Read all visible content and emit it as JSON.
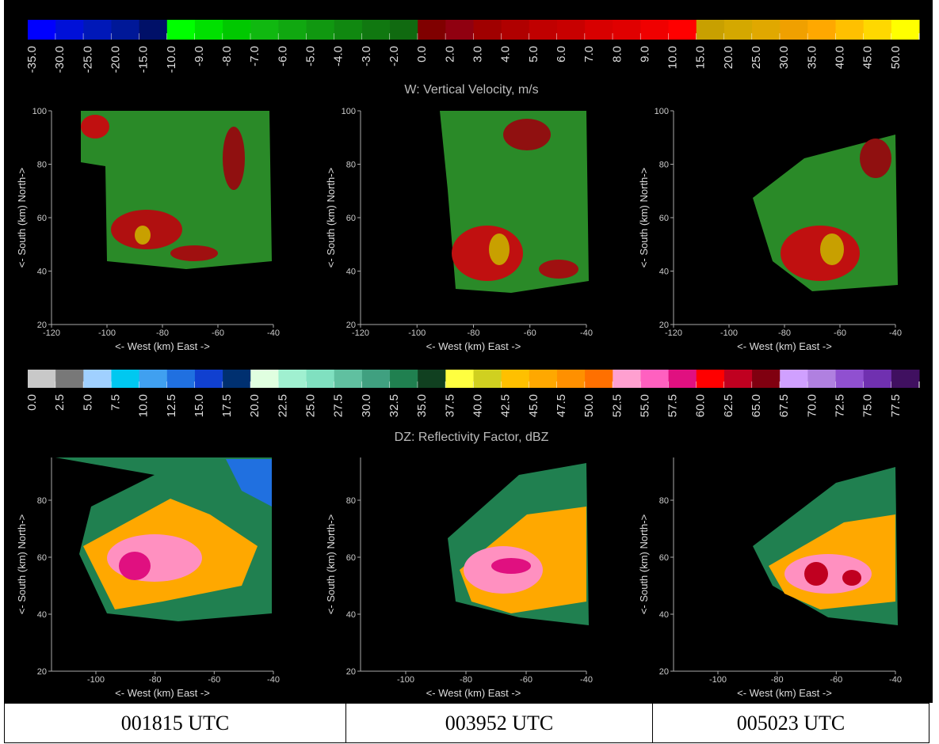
{
  "velocity_colorbar": {
    "title": "W: Vertical Velocity, m/s",
    "labels": [
      "-35.0",
      "-30.0",
      "-25.0",
      "-20.0",
      "-15.0",
      "-10.0",
      "-9.0",
      "-8.0",
      "-7.0",
      "-6.0",
      "-5.0",
      "-4.0",
      "-3.0",
      "-2.0",
      "0.0",
      "2.0",
      "3.0",
      "4.0",
      "5.0",
      "6.0",
      "7.0",
      "8.0",
      "9.0",
      "10.0",
      "15.0",
      "20.0",
      "25.0",
      "30.0",
      "35.0",
      "40.0",
      "45.0",
      "50.0"
    ],
    "colors": [
      "#0000ff",
      "#0010d8",
      "#0018b8",
      "#001898",
      "#001068",
      "#00ff00",
      "#00e000",
      "#00c800",
      "#10b810",
      "#10a810",
      "#109810",
      "#108810",
      "#107810",
      "#106a10",
      "#800000",
      "#900010",
      "#a00000",
      "#b00000",
      "#c00000",
      "#c80000",
      "#d80000",
      "#e00000",
      "#f00000",
      "#ff0000",
      "#c8a000",
      "#d4a800",
      "#e0a800",
      "#f0a000",
      "#ffa800",
      "#ffc000",
      "#ffd800",
      "#ffff00"
    ]
  },
  "reflectivity_colorbar": {
    "title": "DZ: Reflectivity Factor, dBZ",
    "labels": [
      "0.0",
      "2.5",
      "5.0",
      "7.5",
      "10.0",
      "12.5",
      "15.0",
      "17.5",
      "20.0",
      "22.5",
      "25.0",
      "27.5",
      "30.0",
      "32.5",
      "35.0",
      "37.5",
      "40.0",
      "42.5",
      "45.0",
      "47.5",
      "50.0",
      "52.5",
      "55.0",
      "57.5",
      "60.0",
      "62.5",
      "65.0",
      "67.5",
      "70.0",
      "72.5",
      "75.0",
      "77.5"
    ],
    "colors": [
      "#c8c8c8",
      "#787878",
      "#a0d0ff",
      "#00c8f0",
      "#40a0f0",
      "#2070e0",
      "#1040d0",
      "#003070",
      "#e0ffe0",
      "#a0f0d0",
      "#80e0c0",
      "#60c0a0",
      "#40a080",
      "#208050",
      "#104020",
      "#ffff40",
      "#d0d020",
      "#ffc000",
      "#ffa800",
      "#ff9000",
      "#ff7000",
      "#ffa0d0",
      "#ff60c0",
      "#e01080",
      "#ff0000",
      "#c00020",
      "#800010",
      "#d0a0ff",
      "#b080e0",
      "#9050d0",
      "#7030b0",
      "#401060",
      "#ffffff"
    ]
  },
  "panel_axes": {
    "x_label": "<- West (km) East ->",
    "y_label": "<- South (km) North->",
    "top_x_ticks": [
      "-120",
      "-100",
      "-80",
      "-60",
      "-40"
    ],
    "top_y_ticks": [
      "20",
      "40",
      "60",
      "80",
      "100"
    ],
    "bottom_x_ticks": [
      "-100",
      "-80",
      "-60",
      "-40"
    ],
    "bottom_y_ticks": [
      "20",
      "40",
      "60",
      "80"
    ]
  },
  "times": [
    "001815 UTC",
    "003952 UTC",
    "005023 UTC"
  ]
}
